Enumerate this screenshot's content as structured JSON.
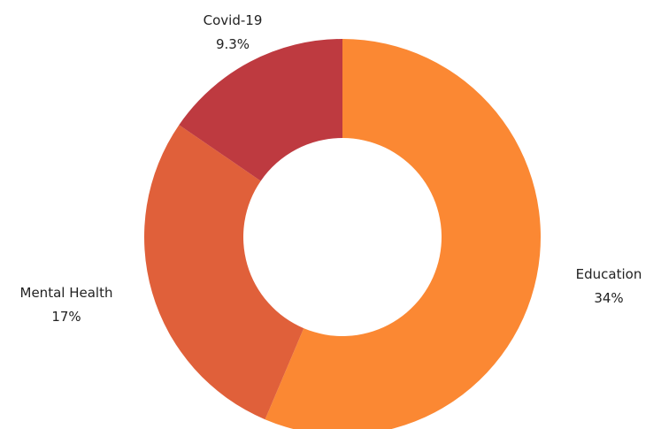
{
  "chart_data": {
    "type": "pie",
    "style": "donut",
    "title": "",
    "legend": "none",
    "slices": [
      {
        "name": "Education",
        "value_label": "34%",
        "value": 34,
        "color": "#FB8833"
      },
      {
        "name": "Mental Health",
        "value_label": "17%",
        "value": 17,
        "color": "#E0603A"
      },
      {
        "name": "Covid-19",
        "value_label": "9.3%",
        "value": 9.3,
        "color": "#BE3A40"
      }
    ]
  }
}
